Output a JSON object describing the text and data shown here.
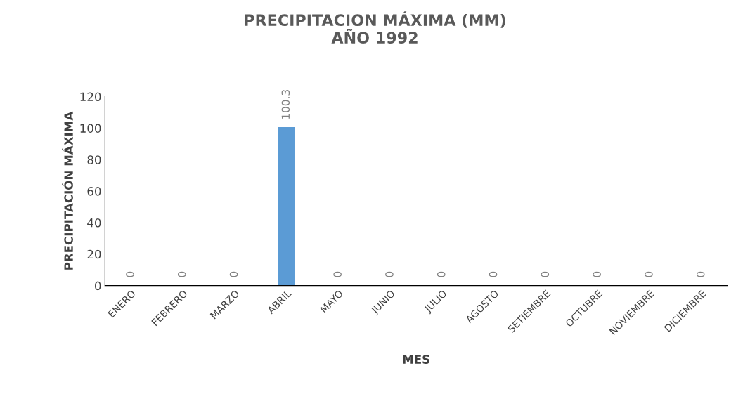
{
  "chart_data": {
    "type": "bar",
    "title": "PRECIPITACION MÁXIMA (MM)\nAÑO 1992",
    "xlabel": "MES",
    "ylabel": "PRECIPITACIÓN MÁXIMA",
    "categories": [
      "ENERO",
      "FEBRERO",
      "MARZO",
      "ABRIL",
      "MAYO",
      "JUNIO",
      "JULIO",
      "AGOSTO",
      "SETIEMBRE",
      "OCTUBRE",
      "NOVIEMBRE",
      "DICIEMBRE"
    ],
    "values": [
      0,
      0,
      0,
      100.3,
      0,
      0,
      0,
      0,
      0,
      0,
      0,
      0
    ],
    "color": "#5b9bd5",
    "ylim": [
      0,
      120
    ],
    "yticks": [
      0,
      20,
      40,
      60,
      80,
      100,
      120
    ],
    "grid": false,
    "data_labels": true,
    "legend": false
  }
}
